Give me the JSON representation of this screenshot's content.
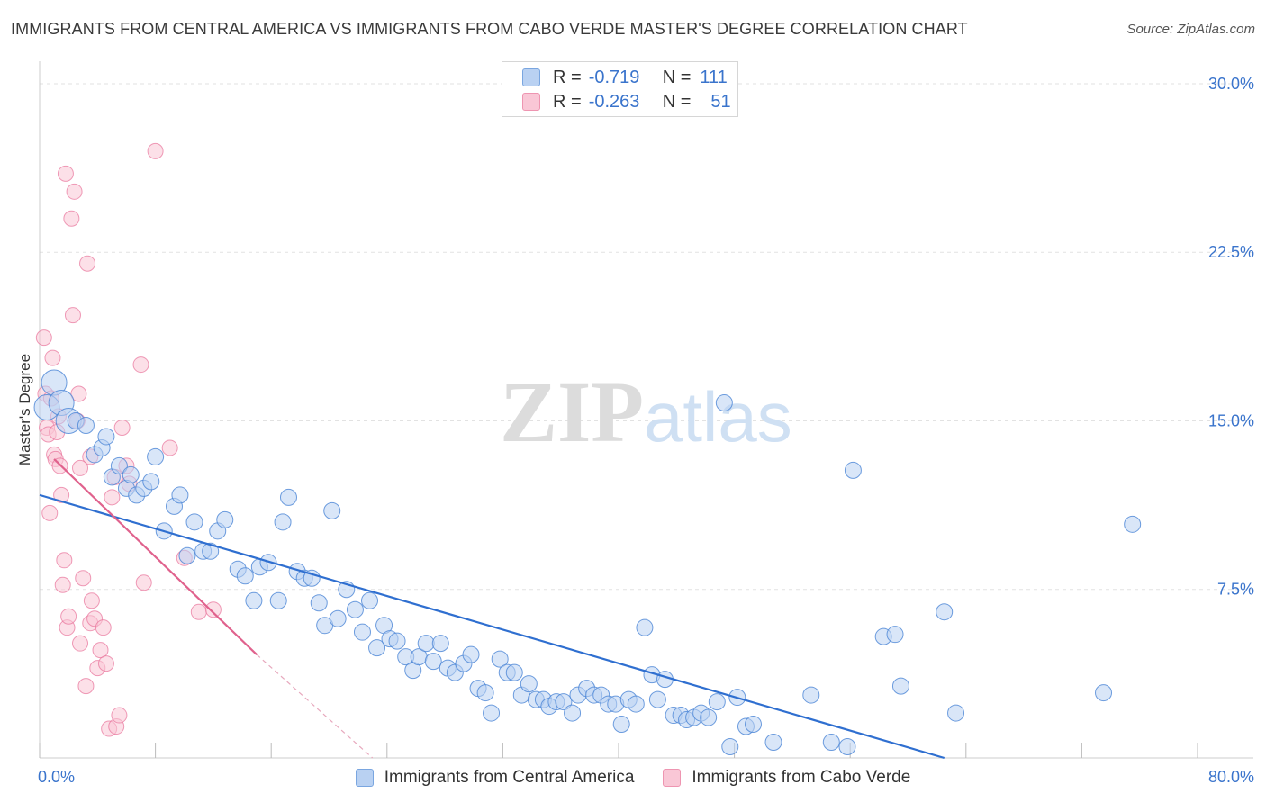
{
  "title": "IMMIGRANTS FROM CENTRAL AMERICA VS IMMIGRANTS FROM CABO VERDE MASTER'S DEGREE CORRELATION CHART",
  "source": "Source: ZipAtlas.com",
  "watermark": {
    "zip": "ZIP",
    "atlas": "atlas"
  },
  "legend": {
    "r_label": "R =",
    "n_label": "N =",
    "series": [
      {
        "r": "-0.719",
        "n": "111"
      },
      {
        "r": "-0.263",
        "n": "51"
      }
    ]
  },
  "chart_data": {
    "type": "scatter",
    "title": "IMMIGRANTS FROM CENTRAL AMERICA VS IMMIGRANTS FROM CABO VERDE MASTER'S DEGREE CORRELATION CHART",
    "xlabel": "",
    "ylabel": "Master's Degree",
    "xlim": [
      0,
      80
    ],
    "ylim": [
      0,
      31
    ],
    "x_tick_labels": [
      "0.0%",
      "80.0%"
    ],
    "y_ticks": [
      7.5,
      15.0,
      22.5,
      30.0
    ],
    "y_tick_labels": [
      "7.5%",
      "15.0%",
      "22.5%",
      "30.0%"
    ],
    "grid": true,
    "colors": {
      "blue": "#4a84d6",
      "blue_fill": "#b9d1f2",
      "pink": "#e8729a",
      "pink_fill": "#f9c7d6"
    },
    "series": [
      {
        "name": "Immigrants from Central America",
        "color": "#4a84d6",
        "trend": {
          "x0": 0,
          "y0": 11.7,
          "x1": 62.5,
          "y1": 0
        },
        "points": [
          [
            0.5,
            15.6
          ],
          [
            1.0,
            16.7
          ],
          [
            1.5,
            15.8
          ],
          [
            2.0,
            15.0
          ],
          [
            2.5,
            15.0
          ],
          [
            3.2,
            14.8
          ],
          [
            3.8,
            13.5
          ],
          [
            4.3,
            13.8
          ],
          [
            4.6,
            14.3
          ],
          [
            5.0,
            12.5
          ],
          [
            5.5,
            13.0
          ],
          [
            6.0,
            12.0
          ],
          [
            6.3,
            12.6
          ],
          [
            6.7,
            11.7
          ],
          [
            7.2,
            12.0
          ],
          [
            7.7,
            12.3
          ],
          [
            8.0,
            13.4
          ],
          [
            8.6,
            10.1
          ],
          [
            9.3,
            11.2
          ],
          [
            9.7,
            11.7
          ],
          [
            10.2,
            9.0
          ],
          [
            10.7,
            10.5
          ],
          [
            11.3,
            9.2
          ],
          [
            11.8,
            9.2
          ],
          [
            12.3,
            10.1
          ],
          [
            12.8,
            10.6
          ],
          [
            13.7,
            8.4
          ],
          [
            14.2,
            8.1
          ],
          [
            14.8,
            7.0
          ],
          [
            15.2,
            8.5
          ],
          [
            15.8,
            8.7
          ],
          [
            16.5,
            7.0
          ],
          [
            16.8,
            10.5
          ],
          [
            17.2,
            11.6
          ],
          [
            17.8,
            8.3
          ],
          [
            18.3,
            8.0
          ],
          [
            18.8,
            8.0
          ],
          [
            19.3,
            6.9
          ],
          [
            19.7,
            5.9
          ],
          [
            20.2,
            11.0
          ],
          [
            20.6,
            6.2
          ],
          [
            21.2,
            7.5
          ],
          [
            21.8,
            6.6
          ],
          [
            22.3,
            5.6
          ],
          [
            22.8,
            7.0
          ],
          [
            23.3,
            4.9
          ],
          [
            23.8,
            5.9
          ],
          [
            24.2,
            5.3
          ],
          [
            24.7,
            5.2
          ],
          [
            25.3,
            4.5
          ],
          [
            25.8,
            3.9
          ],
          [
            26.2,
            4.5
          ],
          [
            26.7,
            5.1
          ],
          [
            27.2,
            4.3
          ],
          [
            27.7,
            5.1
          ],
          [
            28.2,
            4.0
          ],
          [
            28.7,
            3.8
          ],
          [
            29.3,
            4.2
          ],
          [
            29.8,
            4.6
          ],
          [
            30.3,
            3.1
          ],
          [
            30.8,
            2.9
          ],
          [
            31.2,
            2.0
          ],
          [
            31.8,
            4.4
          ],
          [
            32.3,
            3.8
          ],
          [
            32.8,
            3.8
          ],
          [
            33.3,
            2.8
          ],
          [
            33.8,
            3.3
          ],
          [
            34.3,
            2.6
          ],
          [
            34.8,
            2.6
          ],
          [
            35.2,
            2.3
          ],
          [
            35.7,
            2.5
          ],
          [
            36.2,
            2.5
          ],
          [
            36.8,
            2.0
          ],
          [
            37.2,
            2.8
          ],
          [
            37.8,
            3.1
          ],
          [
            38.3,
            2.8
          ],
          [
            38.8,
            2.8
          ],
          [
            39.3,
            2.4
          ],
          [
            39.8,
            2.4
          ],
          [
            40.2,
            1.5
          ],
          [
            40.7,
            2.6
          ],
          [
            41.2,
            2.4
          ],
          [
            41.8,
            5.8
          ],
          [
            42.3,
            3.7
          ],
          [
            42.7,
            2.6
          ],
          [
            43.2,
            3.5
          ],
          [
            43.8,
            1.9
          ],
          [
            44.3,
            1.9
          ],
          [
            44.7,
            1.7
          ],
          [
            45.2,
            1.8
          ],
          [
            45.7,
            2.0
          ],
          [
            46.2,
            1.8
          ],
          [
            46.8,
            2.5
          ],
          [
            47.3,
            15.8
          ],
          [
            47.7,
            0.5
          ],
          [
            48.2,
            2.7
          ],
          [
            48.8,
            1.4
          ],
          [
            49.3,
            1.5
          ],
          [
            50.7,
            0.7
          ],
          [
            53.3,
            2.8
          ],
          [
            54.7,
            0.7
          ],
          [
            55.8,
            0.5
          ],
          [
            56.2,
            12.8
          ],
          [
            58.3,
            5.4
          ],
          [
            59.1,
            5.5
          ],
          [
            59.5,
            3.2
          ],
          [
            62.5,
            6.5
          ],
          [
            63.3,
            2.0
          ],
          [
            73.5,
            2.9
          ],
          [
            75.5,
            10.4
          ]
        ]
      },
      {
        "name": "Immigrants from Cabo Verde",
        "color": "#e8729a",
        "trend": {
          "x0": 1.0,
          "y0": 13.3,
          "x1": 15.0,
          "y1": 4.6
        },
        "trend_dashed": {
          "x0": 15.0,
          "y0": 4.6,
          "x1": 23.0,
          "y1": 0
        },
        "points": [
          [
            0.3,
            18.7
          ],
          [
            0.4,
            16.2
          ],
          [
            0.5,
            14.7
          ],
          [
            0.6,
            14.4
          ],
          [
            0.7,
            10.9
          ],
          [
            0.8,
            16.0
          ],
          [
            0.9,
            17.8
          ],
          [
            1.0,
            13.5
          ],
          [
            1.1,
            13.3
          ],
          [
            1.2,
            14.5
          ],
          [
            1.3,
            15.2
          ],
          [
            1.4,
            13.0
          ],
          [
            1.5,
            11.7
          ],
          [
            1.6,
            7.7
          ],
          [
            1.7,
            8.8
          ],
          [
            1.8,
            26.0
          ],
          [
            1.9,
            5.8
          ],
          [
            2.0,
            6.3
          ],
          [
            2.2,
            24.0
          ],
          [
            2.3,
            19.7
          ],
          [
            2.4,
            25.2
          ],
          [
            2.6,
            15.0
          ],
          [
            2.7,
            16.2
          ],
          [
            2.8,
            5.1
          ],
          [
            3.0,
            8.0
          ],
          [
            3.2,
            3.2
          ],
          [
            3.3,
            22.0
          ],
          [
            3.5,
            6.0
          ],
          [
            3.6,
            7.0
          ],
          [
            3.8,
            6.2
          ],
          [
            4.0,
            4.0
          ],
          [
            4.2,
            4.8
          ],
          [
            4.4,
            5.8
          ],
          [
            4.6,
            4.2
          ],
          [
            4.8,
            1.3
          ],
          [
            5.0,
            11.6
          ],
          [
            5.2,
            12.5
          ],
          [
            5.3,
            1.4
          ],
          [
            5.5,
            1.9
          ],
          [
            5.7,
            14.7
          ],
          [
            3.5,
            13.4
          ],
          [
            2.8,
            12.9
          ],
          [
            6.0,
            13.0
          ],
          [
            6.2,
            12.2
          ],
          [
            7.0,
            17.5
          ],
          [
            7.2,
            7.8
          ],
          [
            8.0,
            27.0
          ],
          [
            9.0,
            13.8
          ],
          [
            10.0,
            8.9
          ],
          [
            11.0,
            6.5
          ],
          [
            12.0,
            6.6
          ]
        ]
      }
    ]
  },
  "bottom_legend": [
    "Immigrants from Central America",
    "Immigrants from Cabo Verde"
  ]
}
